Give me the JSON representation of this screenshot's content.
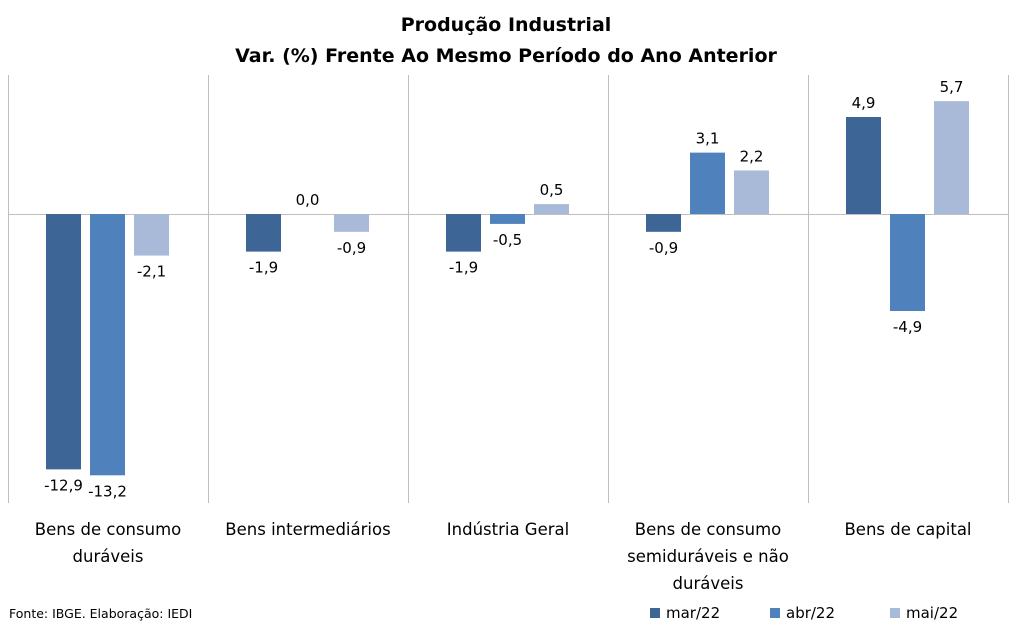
{
  "chart_data": {
    "type": "bar",
    "title": "Produção Industrial",
    "subtitle": "Var. (%) Frente Ao Mesmo Período do Ano Anterior",
    "categories": [
      [
        "Bens de consumo",
        "duráveis"
      ],
      [
        "Bens intermediários"
      ],
      [
        "Indústria Geral"
      ],
      [
        "Bens de consumo",
        "semiduráveis e não",
        "duráveis"
      ],
      [
        "Bens de capital"
      ]
    ],
    "series": [
      {
        "name": "mar/22",
        "color": "#3d6595",
        "values": [
          -12.9,
          -1.9,
          -1.9,
          -0.9,
          4.9
        ],
        "labels": [
          "-12,9",
          "-1,9",
          "-1,9",
          "-0,9",
          "4,9"
        ]
      },
      {
        "name": "abr/22",
        "color": "#4f81bd",
        "values": [
          -13.2,
          0.0,
          -0.5,
          3.1,
          -4.9
        ],
        "labels": [
          "-13,2",
          "0,0",
          "-0,5",
          "3,1",
          "-4,9"
        ]
      },
      {
        "name": "mai/22",
        "color": "#a9b9d8",
        "values": [
          -2.1,
          -0.9,
          0.5,
          2.2,
          5.7
        ],
        "labels": [
          "-2,1",
          "-0,9",
          "0,5",
          "2,2",
          "5,7"
        ]
      }
    ],
    "ylim": [
      -14.5,
      7.0
    ],
    "grid": "vertical category separators",
    "legend": "bottom-right"
  },
  "source": "Fonte: IBGE. Elaboração: IEDI"
}
